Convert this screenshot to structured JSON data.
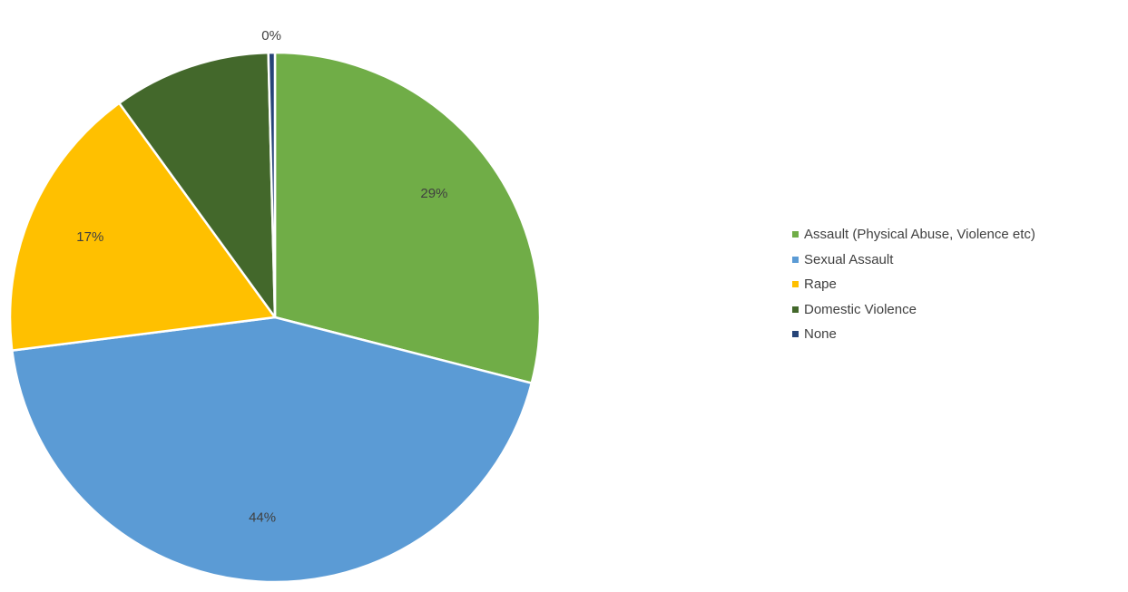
{
  "chart_data": {
    "type": "pie",
    "title": "",
    "slices": [
      {
        "label": "Assault (Physical Abuse, Violence etc)",
        "value": 29,
        "data_label": "29%",
        "color": "#70AD47"
      },
      {
        "label": "Sexual Assault",
        "value": 44,
        "data_label": "44%",
        "color": "#5B9BD5"
      },
      {
        "label": "Rape",
        "value": 17,
        "data_label": "17%",
        "color": "#FFC000"
      },
      {
        "label": "Domestic Violence",
        "value": 9.6,
        "data_label": "",
        "color": "#43682B"
      },
      {
        "label": "None",
        "value": 0.4,
        "data_label": "0%",
        "color": "#264478"
      }
    ],
    "start_angle_deg": 0,
    "direction": "clockwise",
    "legend": {
      "position": "right",
      "entries": [
        "Assault (Physical Abuse, Violence etc)",
        "Sexual Assault",
        "Rape",
        "Domestic Violence",
        "None"
      ]
    }
  }
}
